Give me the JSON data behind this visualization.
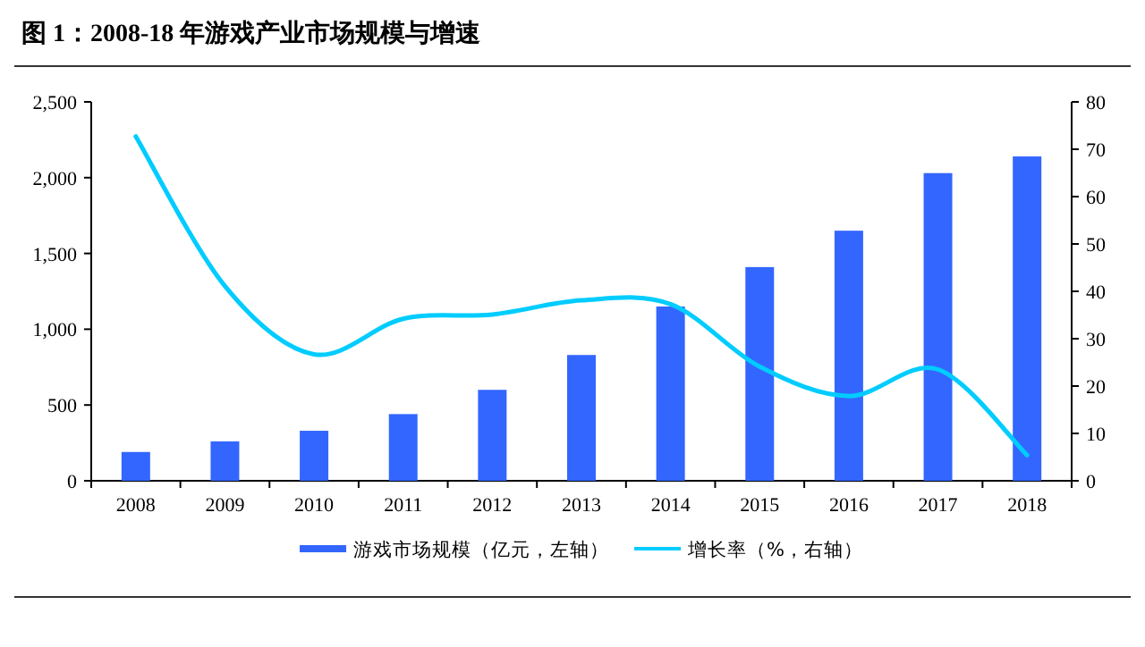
{
  "chart_data": {
    "type": "bar",
    "title": "图 1：2008-18 年游戏产业市场规模与增速",
    "categories": [
      "2008",
      "2009",
      "2010",
      "2011",
      "2012",
      "2013",
      "2014",
      "2015",
      "2016",
      "2017",
      "2018"
    ],
    "series": [
      {
        "name": "游戏市场规模（亿元，左轴）",
        "color": "#3366ff",
        "values": [
          190,
          260,
          330,
          440,
          600,
          830,
          1150,
          1410,
          1650,
          2030,
          2140
        ]
      },
      {
        "name": "增长率（%，右轴）",
        "type": "line",
        "axis": "y2",
        "color": "#00ccff",
        "values": [
          72.7,
          41.1,
          26.7,
          34.2,
          35.1,
          38.1,
          37.3,
          24.1,
          17.9,
          23.5,
          5.4
        ]
      }
    ],
    "ylim": [
      0,
      2500
    ],
    "yticks": [
      0,
      500,
      {
        "value": 1000,
        "label": "1,000"
      },
      {
        "value": 1500,
        "label": "1,500"
      },
      {
        "value": 2000,
        "label": "2,000"
      },
      {
        "value": 2500,
        "label": "2,500"
      }
    ],
    "y2lim": [
      0,
      80
    ],
    "y2ticks": [
      0,
      10,
      20,
      30,
      40,
      50,
      60,
      70,
      80
    ],
    "legend": "bottom"
  }
}
